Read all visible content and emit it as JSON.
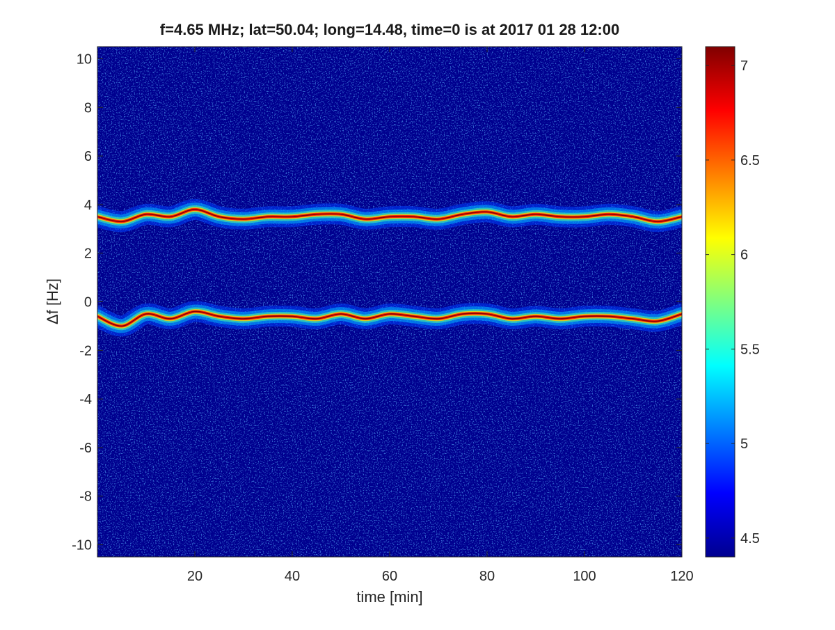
{
  "chart_data": {
    "type": "heatmap",
    "title": "f=4.65 MHz;  lat=50.04; long=14.48, time=0 is at 2017 01 28 12:00",
    "xlabel": "time [min]",
    "ylabel": "Δf [Hz]",
    "xlim": [
      0,
      120
    ],
    "ylim": [
      -10.5,
      10.5
    ],
    "xticks": [
      20,
      40,
      60,
      80,
      100,
      120
    ],
    "yticks": [
      -10,
      -8,
      -6,
      -4,
      -2,
      0,
      2,
      4,
      6,
      8,
      10
    ],
    "colorbar": {
      "colormap": "jet",
      "clim": [
        4.4,
        7.1
      ],
      "ticks": [
        4.5,
        5,
        5.5,
        6,
        6.5,
        7
      ]
    },
    "background_level": 4.5,
    "series": [
      {
        "x": [
          0,
          5,
          10,
          15,
          20,
          25,
          30,
          35,
          40,
          45,
          50,
          55,
          60,
          65,
          70,
          75,
          80,
          85,
          90,
          95,
          100,
          105,
          110,
          115,
          120
        ],
        "y": [
          3.5,
          3.3,
          3.6,
          3.5,
          3.8,
          3.5,
          3.4,
          3.5,
          3.5,
          3.6,
          3.6,
          3.4,
          3.5,
          3.5,
          3.4,
          3.6,
          3.7,
          3.5,
          3.6,
          3.5,
          3.5,
          3.6,
          3.5,
          3.3,
          3.5
        ]
      },
      {
        "x": [
          0,
          5,
          10,
          15,
          20,
          25,
          30,
          35,
          40,
          45,
          50,
          55,
          60,
          65,
          70,
          75,
          80,
          85,
          90,
          95,
          100,
          105,
          110,
          115,
          120
        ],
        "y": [
          -0.6,
          -1.0,
          -0.5,
          -0.7,
          -0.4,
          -0.6,
          -0.7,
          -0.6,
          -0.6,
          -0.7,
          -0.5,
          -0.7,
          -0.5,
          -0.6,
          -0.7,
          -0.5,
          -0.5,
          -0.7,
          -0.6,
          -0.7,
          -0.6,
          -0.6,
          -0.7,
          -0.8,
          -0.5
        ]
      }
    ]
  }
}
